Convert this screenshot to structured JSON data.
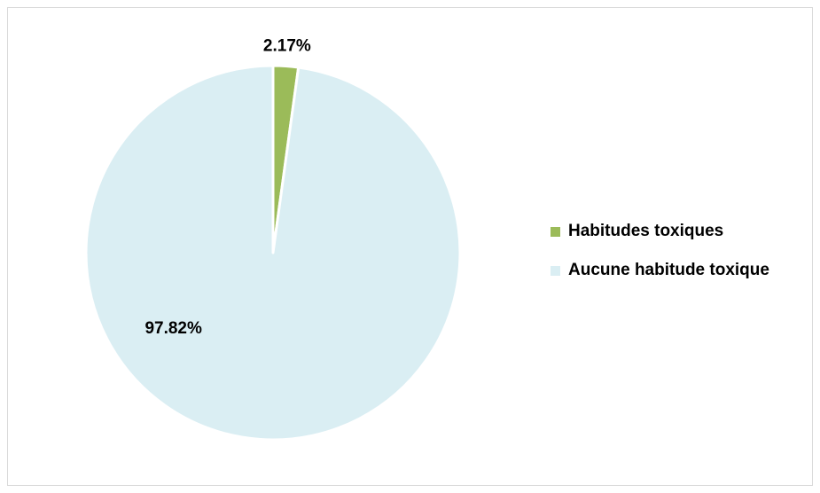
{
  "chart_data": {
    "type": "pie",
    "title": "",
    "slices": [
      {
        "label": "Habitudes toxiques",
        "value": 2.17,
        "display": "2.17%",
        "color": "#9bbb59"
      },
      {
        "label": "Aucune habitude toxique",
        "value": 97.82,
        "display": "97.82%",
        "color": "#daeef3"
      }
    ],
    "legend_position": "right"
  }
}
